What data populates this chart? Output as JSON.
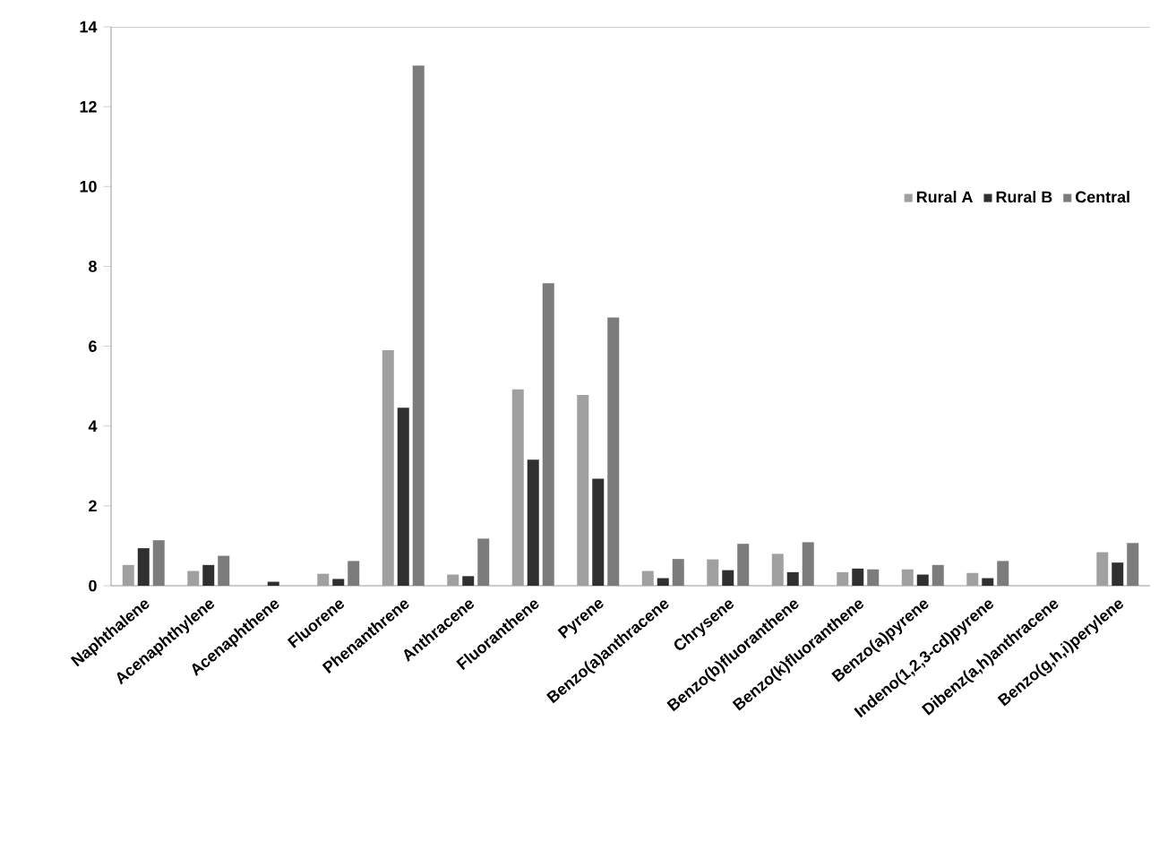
{
  "chart_data": {
    "type": "bar",
    "categories": [
      "Naphthalene",
      "Acenaphthylene",
      "Acenaphthene",
      "Fluorene",
      "Phenanthrene",
      "Anthracene",
      "Fluoranthene",
      "Pyrene",
      "Benzo(a)anthracene",
      "Chrysene",
      "Benzo(b)fluoranthene",
      "Benzo(k)fluoranthene",
      "Benzo(a)pyrene",
      "Indeno(1,2,3-cd)pyrene",
      "Dibenz(a,h)anthracene",
      "Benzo(g,h,i)perylene"
    ],
    "series": [
      {
        "name": "Rural A",
        "color": "#a0a0a0",
        "values": [
          0.52,
          0.37,
          0,
          0.3,
          5.9,
          0.28,
          4.92,
          4.78,
          0.37,
          0.66,
          0.8,
          0.34,
          0.41,
          0.32,
          0,
          0.84
        ]
      },
      {
        "name": "Rural B",
        "color": "#303030",
        "values": [
          0.94,
          0.52,
          0.1,
          0.17,
          4.46,
          0.24,
          3.16,
          2.68,
          0.19,
          0.39,
          0.34,
          0.43,
          0.28,
          0.19,
          0,
          0.58
        ]
      },
      {
        "name": "Central",
        "color": "#7c7c7c",
        "values": [
          1.14,
          0.75,
          0,
          0.62,
          13.03,
          1.18,
          7.58,
          6.72,
          0.67,
          1.05,
          1.09,
          0.41,
          0.52,
          0.62,
          0,
          1.07
        ]
      }
    ],
    "ylim": [
      0,
      14
    ],
    "yticks": [
      0,
      2,
      4,
      6,
      8,
      10,
      12,
      14
    ],
    "grid": false,
    "legend": "top right"
  }
}
